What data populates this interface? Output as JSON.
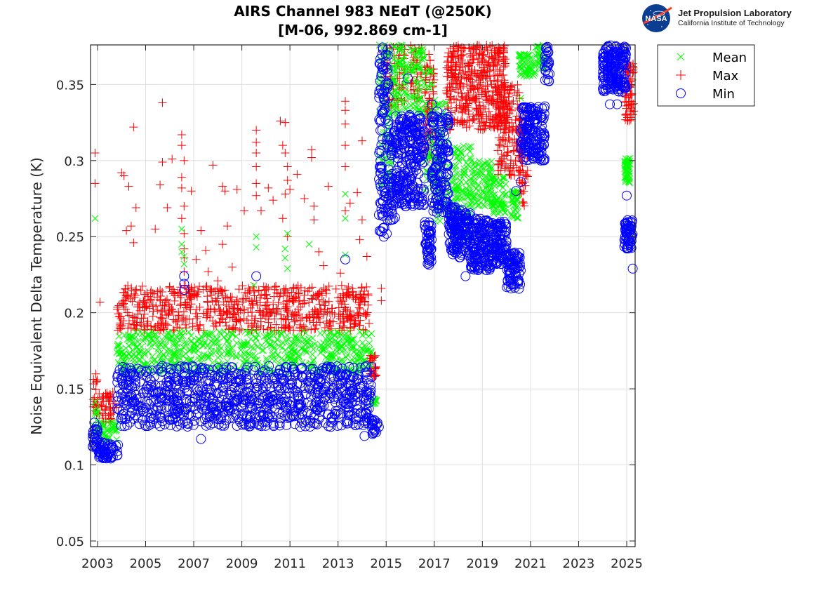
{
  "logo": {
    "badge_text": "NASA",
    "org_name": "Jet Propulsion Laboratory",
    "org_sub": "California Institute of Technology"
  },
  "chart_data": {
    "type": "scatter",
    "title_line1": "AIRS Channel 983 NEdT (@250K)",
    "title_line2": "[M-06, 992.869 cm-1]",
    "xlabel": "",
    "ylabel": "Noise Equivalent Delta Temperature (K)",
    "xlim": [
      2002.71,
      2025.35
    ],
    "ylim": [
      0.0463,
      0.376
    ],
    "x_ticks": [
      2003,
      2005,
      2007,
      2009,
      2011,
      2013,
      2015,
      2017,
      2019,
      2021,
      2023,
      2025
    ],
    "x_tick_labels": [
      "2003",
      "2005",
      "2007",
      "2009",
      "2011",
      "2013",
      "2015",
      "2017",
      "2019",
      "2021",
      "2023",
      "2025"
    ],
    "y_ticks": [
      0.05,
      0.1,
      0.15,
      0.2,
      0.25,
      0.3,
      0.35
    ],
    "y_tick_labels": [
      "0.05",
      "0.1",
      "0.15",
      "0.2",
      "0.25",
      "0.3",
      "0.35"
    ],
    "grid": true,
    "legend": {
      "placement": "outside-top-right",
      "entries": [
        {
          "name": "Mean",
          "marker": "x",
          "color": "#00ff00"
        },
        {
          "name": "Max",
          "marker": "+",
          "color": "#ff0000"
        },
        {
          "name": "Min",
          "marker": "o",
          "color": "#0000ff"
        }
      ]
    },
    "series": [
      {
        "name": "Max",
        "marker": "+",
        "color": "#ff0000",
        "segments": [
          {
            "x": [
              2002.8,
              2003.0
            ],
            "y": [
              0.128,
              0.16
            ],
            "n": 20
          },
          {
            "x": [
              2003.0,
              2003.8
            ],
            "y": [
              0.128,
              0.148
            ],
            "n": 50
          },
          {
            "x": [
              2003.8,
              2014.3
            ],
            "y": [
              0.188,
              0.218
            ],
            "n": 700
          },
          {
            "x": [
              2014.3,
              2014.6
            ],
            "y": [
              0.158,
              0.172
            ],
            "n": 30
          },
          {
            "x": [
              2014.9,
              2015.8
            ],
            "y": [
              0.335,
              0.376
            ],
            "n": 60
          },
          {
            "x": [
              2016.0,
              2016.5
            ],
            "y": [
              0.34,
              0.376
            ],
            "n": 40
          },
          {
            "x": [
              2016.6,
              2017.0
            ],
            "y": [
              0.3,
              0.37
            ],
            "n": 70
          },
          {
            "x": [
              2017.5,
              2020.0
            ],
            "y": [
              0.32,
              0.376
            ],
            "n": 450
          },
          {
            "x": [
              2019.6,
              2020.6
            ],
            "y": [
              0.29,
              0.35
            ],
            "n": 140
          },
          {
            "x": [
              2020.5,
              2020.9
            ],
            "y": [
              0.27,
              0.33
            ],
            "n": 60
          },
          {
            "x": [
              2024.9,
              2025.3
            ],
            "y": [
              0.325,
              0.365
            ],
            "n": 70
          }
        ],
        "outliers": [
          [
            2002.9,
            0.305
          ],
          [
            2002.9,
            0.285
          ],
          [
            2003.1,
            0.207
          ],
          [
            2004.0,
            0.292
          ],
          [
            2004.1,
            0.29
          ],
          [
            2004.3,
            0.283
          ],
          [
            2004.5,
            0.322
          ],
          [
            2004.6,
            0.269
          ],
          [
            2004.5,
            0.246
          ],
          [
            2004.2,
            0.254
          ],
          [
            2004.4,
            0.257
          ],
          [
            2005.4,
            0.255
          ],
          [
            2005.7,
            0.338
          ],
          [
            2005.7,
            0.299
          ],
          [
            2005.6,
            0.284
          ],
          [
            2005.9,
            0.269
          ],
          [
            2006.1,
            0.301
          ],
          [
            2006.5,
            0.317
          ],
          [
            2006.5,
            0.31
          ],
          [
            2006.6,
            0.3
          ],
          [
            2006.5,
            0.289
          ],
          [
            2006.5,
            0.282
          ],
          [
            2006.6,
            0.27
          ],
          [
            2006.5,
            0.262
          ],
          [
            2006.6,
            0.252
          ],
          [
            2006.6,
            0.242
          ],
          [
            2006.6,
            0.236
          ],
          [
            2006.6,
            0.227
          ],
          [
            2006.6,
            0.218
          ],
          [
            2006.9,
            0.28
          ],
          [
            2007.3,
            0.254
          ],
          [
            2007.5,
            0.241
          ],
          [
            2007.6,
            0.227
          ],
          [
            2007.8,
            0.297
          ],
          [
            2008.2,
            0.283
          ],
          [
            2008.3,
            0.28
          ],
          [
            2008.4,
            0.257
          ],
          [
            2008.2,
            0.245
          ],
          [
            2008.6,
            0.23
          ],
          [
            2008.8,
            0.281
          ],
          [
            2009.1,
            0.267
          ],
          [
            2009.6,
            0.32
          ],
          [
            2009.6,
            0.312
          ],
          [
            2009.6,
            0.305
          ],
          [
            2009.6,
            0.296
          ],
          [
            2009.6,
            0.285
          ],
          [
            2009.6,
            0.277
          ],
          [
            2009.8,
            0.267
          ],
          [
            2010.1,
            0.282
          ],
          [
            2010.3,
            0.274
          ],
          [
            2010.6,
            0.326
          ],
          [
            2010.8,
            0.325
          ],
          [
            2010.7,
            0.31
          ],
          [
            2010.8,
            0.305
          ],
          [
            2010.9,
            0.296
          ],
          [
            2010.9,
            0.287
          ],
          [
            2010.8,
            0.278
          ],
          [
            2010.7,
            0.262
          ],
          [
            2010.9,
            0.25
          ],
          [
            2011.0,
            0.281
          ],
          [
            2011.3,
            0.291
          ],
          [
            2011.6,
            0.275
          ],
          [
            2011.9,
            0.307
          ],
          [
            2011.9,
            0.302
          ],
          [
            2012.0,
            0.27
          ],
          [
            2012.0,
            0.261
          ],
          [
            2012.2,
            0.24
          ],
          [
            2012.6,
            0.283
          ],
          [
            2013.3,
            0.339
          ],
          [
            2013.3,
            0.333
          ],
          [
            2013.3,
            0.324
          ],
          [
            2013.3,
            0.31
          ],
          [
            2013.3,
            0.296
          ],
          [
            2013.3,
            0.267
          ],
          [
            2013.5,
            0.272
          ],
          [
            2013.8,
            0.279
          ],
          [
            2014.0,
            0.261
          ],
          [
            2014.2,
            0.237
          ],
          [
            2014.0,
            0.313
          ],
          [
            2013.9,
            0.248
          ],
          [
            2013.1,
            0.226
          ],
          [
            2012.4,
            0.231
          ],
          [
            2007.1,
            0.235
          ],
          [
            2008.0,
            0.221
          ],
          [
            2014.8,
            0.216
          ],
          [
            2014.8,
            0.208
          ]
        ]
      },
      {
        "name": "Mean",
        "marker": "x",
        "color": "#00ff00",
        "segments": [
          {
            "x": [
              2002.8,
              2003.0
            ],
            "y": [
              0.118,
              0.142
            ],
            "n": 15
          },
          {
            "x": [
              2003.0,
              2003.8
            ],
            "y": [
              0.116,
              0.128
            ],
            "n": 45
          },
          {
            "x": [
              2003.8,
              2014.4
            ],
            "y": [
              0.16,
              0.188
            ],
            "n": 650
          },
          {
            "x": [
              2014.4,
              2014.6
            ],
            "y": [
              0.14,
              0.145
            ],
            "n": 15
          },
          {
            "x": [
              2014.7,
              2015.3
            ],
            "y": [
              0.28,
              0.376
            ],
            "n": 90
          },
          {
            "x": [
              2015.3,
              2015.9
            ],
            "y": [
              0.33,
              0.376
            ],
            "n": 70
          },
          {
            "x": [
              2016.0,
              2016.6
            ],
            "y": [
              0.33,
              0.376
            ],
            "n": 70
          },
          {
            "x": [
              2016.6,
              2017.0
            ],
            "y": [
              0.28,
              0.36
            ],
            "n": 50
          },
          {
            "x": [
              2017.0,
              2017.6
            ],
            "y": [
              0.26,
              0.34
            ],
            "n": 80
          },
          {
            "x": [
              2017.7,
              2018.6
            ],
            "y": [
              0.245,
              0.31
            ],
            "n": 130
          },
          {
            "x": [
              2018.6,
              2019.4
            ],
            "y": [
              0.27,
              0.3
            ],
            "n": 80
          },
          {
            "x": [
              2019.4,
              2020.0
            ],
            "y": [
              0.265,
              0.29
            ],
            "n": 60
          },
          {
            "x": [
              2020.2,
              2020.5
            ],
            "y": [
              0.262,
              0.28
            ],
            "n": 40
          },
          {
            "x": [
              2020.5,
              2021.2
            ],
            "y": [
              0.355,
              0.37
            ],
            "n": 60
          },
          {
            "x": [
              2021.2,
              2021.6
            ],
            "y": [
              0.36,
              0.376
            ],
            "n": 30
          },
          {
            "x": [
              2024.9,
              2025.15
            ],
            "y": [
              0.285,
              0.302
            ],
            "n": 50
          }
        ],
        "outliers": [
          [
            2002.9,
            0.262
          ],
          [
            2006.5,
            0.255
          ],
          [
            2006.5,
            0.245
          ],
          [
            2006.5,
            0.24
          ],
          [
            2006.6,
            0.237
          ],
          [
            2006.6,
            0.232
          ],
          [
            2009.6,
            0.25
          ],
          [
            2009.6,
            0.243
          ],
          [
            2009.5,
            0.218
          ],
          [
            2010.9,
            0.252
          ],
          [
            2010.8,
            0.242
          ],
          [
            2010.8,
            0.236
          ],
          [
            2010.9,
            0.229
          ],
          [
            2011.8,
            0.245
          ],
          [
            2013.3,
            0.278
          ],
          [
            2013.3,
            0.262
          ],
          [
            2013.3,
            0.238
          ],
          [
            2020.6,
            0.341
          ]
        ]
      },
      {
        "name": "Min",
        "marker": "o",
        "color": "#0000ff",
        "segments": [
          {
            "x": [
              2002.8,
              2003.0
            ],
            "y": [
              0.11,
              0.128
            ],
            "n": 25
          },
          {
            "x": [
              2003.0,
              2003.9
            ],
            "y": [
              0.104,
              0.115
            ],
            "n": 60
          },
          {
            "x": [
              2003.8,
              2014.4
            ],
            "y": [
              0.125,
              0.165
            ],
            "n": 900
          },
          {
            "x": [
              2014.4,
              2014.7
            ],
            "y": [
              0.12,
              0.13
            ],
            "n": 20
          },
          {
            "x": [
              2014.7,
              2015.1
            ],
            "y": [
              0.25,
              0.376
            ],
            "n": 110
          },
          {
            "x": [
              2015.1,
              2015.4
            ],
            "y": [
              0.26,
              0.32
            ],
            "n": 50
          },
          {
            "x": [
              2015.4,
              2016.6
            ],
            "y": [
              0.27,
              0.33
            ],
            "n": 240
          },
          {
            "x": [
              2016.6,
              2016.9
            ],
            "y": [
              0.23,
              0.26
            ],
            "n": 50
          },
          {
            "x": [
              2016.9,
              2017.6
            ],
            "y": [
              0.265,
              0.335
            ],
            "n": 140
          },
          {
            "x": [
              2017.6,
              2018.5
            ],
            "y": [
              0.235,
              0.27
            ],
            "n": 160
          },
          {
            "x": [
              2018.5,
              2019.4
            ],
            "y": [
              0.228,
              0.262
            ],
            "n": 150
          },
          {
            "x": [
              2019.4,
              2020.0
            ],
            "y": [
              0.232,
              0.26
            ],
            "n": 100
          },
          {
            "x": [
              2020.0,
              2020.6
            ],
            "y": [
              0.215,
              0.24
            ],
            "n": 80
          },
          {
            "x": [
              2020.6,
              2021.6
            ],
            "y": [
              0.3,
              0.336
            ],
            "n": 160
          },
          {
            "x": [
              2021.6,
              2021.8
            ],
            "y": [
              0.352,
              0.376
            ],
            "n": 25
          },
          {
            "x": [
              2024.0,
              2025.0
            ],
            "y": [
              0.345,
              0.376
            ],
            "n": 180
          },
          {
            "x": [
              2024.9,
              2025.25
            ],
            "y": [
              0.242,
              0.262
            ],
            "n": 60
          }
        ],
        "outliers": [
          [
            2007.3,
            0.117
          ],
          [
            2006.6,
            0.224
          ],
          [
            2006.6,
            0.219
          ],
          [
            2006.6,
            0.215
          ],
          [
            2009.6,
            0.224
          ],
          [
            2013.3,
            0.235
          ],
          [
            2014.1,
            0.119
          ],
          [
            2015.9,
            0.354
          ],
          [
            2015.8,
            0.27
          ],
          [
            2016.9,
            0.337
          ],
          [
            2017.5,
            0.283
          ],
          [
            2018.3,
            0.224
          ],
          [
            2020.4,
            0.28
          ],
          [
            2020.6,
            0.286
          ],
          [
            2024.3,
            0.337
          ],
          [
            2024.6,
            0.337
          ],
          [
            2025.0,
            0.277
          ],
          [
            2025.25,
            0.229
          ],
          [
            2014.9,
            0.25
          ]
        ]
      }
    ]
  }
}
